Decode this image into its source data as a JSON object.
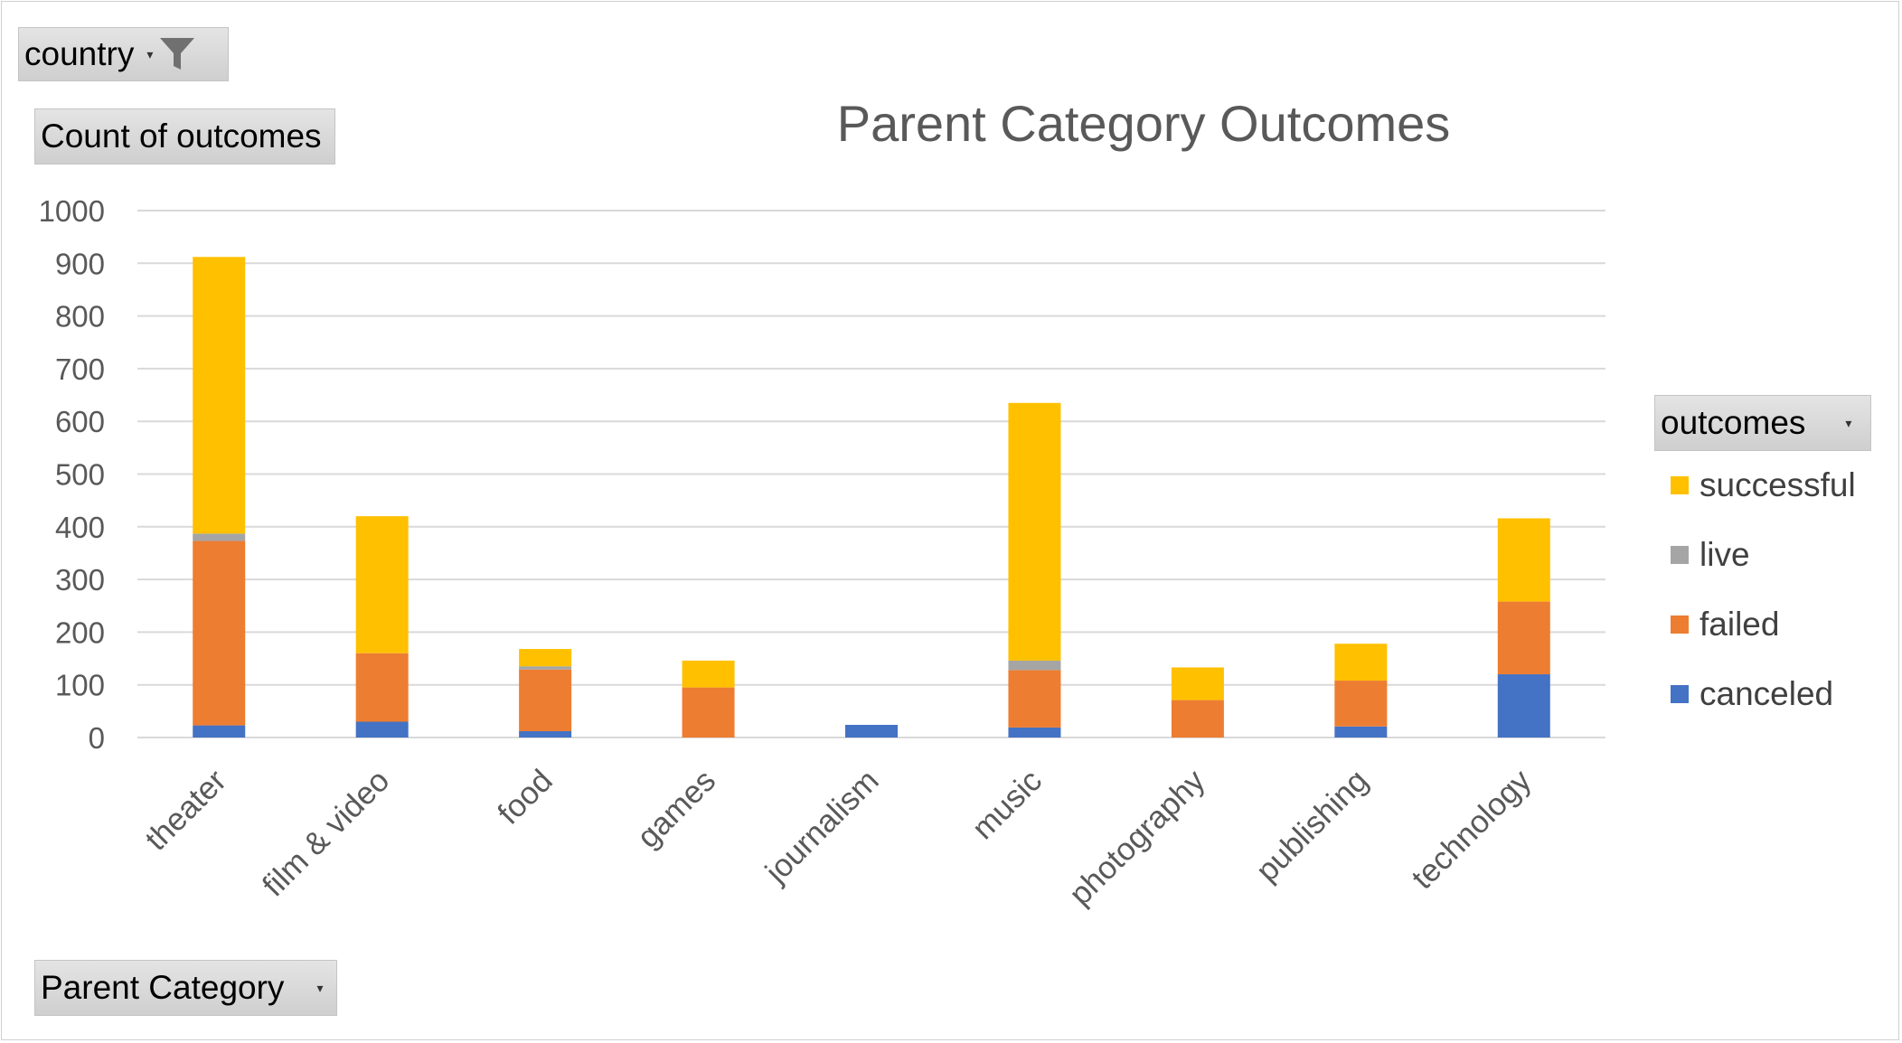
{
  "filter": {
    "label": "country",
    "icon": "funnel-icon"
  },
  "value_field": {
    "label": "Count of outcomes"
  },
  "row_field": {
    "label": "Parent Category",
    "icon": "dropdown-icon"
  },
  "legend_field": {
    "label": "outcomes",
    "icon": "dropdown-icon"
  },
  "chart_data": {
    "type": "bar",
    "stacked": true,
    "title": "Parent Category Outcomes",
    "xlabel": "",
    "ylabel": "",
    "ylim": [
      0,
      1000
    ],
    "yticks": [
      0,
      100,
      200,
      300,
      400,
      500,
      600,
      700,
      800,
      900,
      1000
    ],
    "grid": true,
    "legend_position": "right",
    "categories": [
      "theater",
      "film & video",
      "food",
      "games",
      "journalism",
      "music",
      "photography",
      "publishing",
      "technology"
    ],
    "series": [
      {
        "name": "canceled",
        "color": "#4472C4",
        "values": [
          23,
          30,
          12,
          0,
          24,
          19,
          0,
          21,
          120
        ]
      },
      {
        "name": "failed",
        "color": "#ED7D31",
        "values": [
          350,
          130,
          117,
          95,
          0,
          109,
          71,
          87,
          138
        ]
      },
      {
        "name": "live",
        "color": "#A5A5A5",
        "values": [
          14,
          0,
          6,
          0,
          0,
          18,
          0,
          0,
          0
        ]
      },
      {
        "name": "successful",
        "color": "#FFC000",
        "values": [
          525,
          260,
          33,
          51,
          0,
          489,
          62,
          70,
          158
        ]
      }
    ],
    "legend_order": [
      "successful",
      "live",
      "failed",
      "canceled"
    ]
  }
}
